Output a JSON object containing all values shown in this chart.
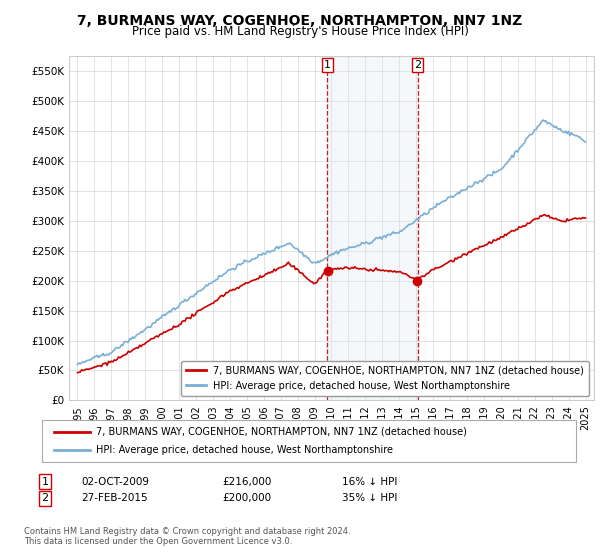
{
  "title": "7, BURMANS WAY, COGENHOE, NORTHAMPTON, NN7 1NZ",
  "subtitle": "Price paid vs. HM Land Registry's House Price Index (HPI)",
  "title_fontsize": 10,
  "subtitle_fontsize": 8.5,
  "ylim": [
    0,
    575000
  ],
  "yticks": [
    0,
    50000,
    100000,
    150000,
    200000,
    250000,
    300000,
    350000,
    400000,
    450000,
    500000,
    550000
  ],
  "ytick_labels": [
    "£0",
    "£50K",
    "£100K",
    "£150K",
    "£200K",
    "£250K",
    "£300K",
    "£350K",
    "£400K",
    "£450K",
    "£500K",
    "£550K"
  ],
  "legend_entries": [
    "7, BURMANS WAY, COGENHOE, NORTHAMPTON, NN7 1NZ (detached house)",
    "HPI: Average price, detached house, West Northamptonshire"
  ],
  "legend_colors": [
    "#cc0000",
    "#7aafd4"
  ],
  "annotation1": {
    "label": "1",
    "date": "02-OCT-2009",
    "price": "£216,000",
    "pct": "16% ↓ HPI"
  },
  "annotation2": {
    "label": "2",
    "date": "27-FEB-2015",
    "price": "£200,000",
    "pct": "35% ↓ HPI"
  },
  "footnote": "Contains HM Land Registry data © Crown copyright and database right 2024.\nThis data is licensed under the Open Government Licence v3.0.",
  "hpi_color": "#7aafd4",
  "price_color": "#cc0000",
  "vline_color": "#cc0000",
  "shading_color": "#dce9f5",
  "background_color": "#ffffff",
  "grid_color": "#dddddd",
  "t1": 2009.75,
  "t2": 2015.08
}
